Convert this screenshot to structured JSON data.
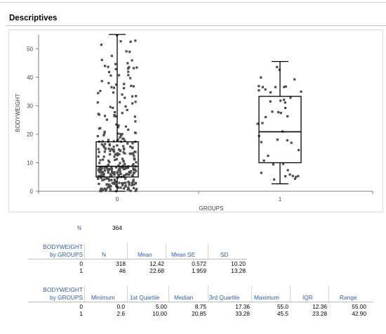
{
  "section": {
    "title": "Descriptives"
  },
  "chart_data": {
    "type": "box",
    "xlabel": "GROUPS",
    "ylabel": "BODYWEIGHT",
    "categories": [
      "0",
      "1"
    ],
    "ylim": [
      0,
      55
    ],
    "yticks": [
      0,
      10,
      20,
      30,
      40,
      50
    ],
    "boxes": [
      {
        "group": "0",
        "min": 0.0,
        "q1": 5.0,
        "median": 8.75,
        "q3": 17.36,
        "max": 55.0,
        "n": 318
      },
      {
        "group": "1",
        "min": 2.6,
        "q1": 10.0,
        "median": 20.85,
        "q3": 33.28,
        "max": 45.5,
        "n": 46
      }
    ],
    "points_shown": true,
    "grid": false,
    "legend": "none"
  },
  "n_table": {
    "label": "N",
    "value": "364"
  },
  "table1": {
    "group_header_line1": "BODYWEIGHT",
    "group_header_line2": "by GROUPS",
    "columns": [
      "N",
      "Mean",
      "Mean SE",
      "SD"
    ],
    "rows": [
      {
        "group": "0",
        "values": [
          "318",
          "12.42",
          "0.572",
          "10.20"
        ]
      },
      {
        "group": "1",
        "values": [
          "46",
          "22.68",
          "1.959",
          "13.28"
        ]
      }
    ]
  },
  "table2": {
    "group_header_line1": "BODYWEIGHT",
    "group_header_line2": "by GROUPS",
    "columns": [
      "Minimum",
      "1st Quartile",
      "Median",
      "3rd Quartile",
      "Maximum",
      "IQR",
      "Range"
    ],
    "rows": [
      {
        "group": "0",
        "values": [
          "0.0",
          "5.00",
          "8.75",
          "17.36",
          "55.0",
          "12.36",
          "55.00"
        ]
      },
      {
        "group": "1",
        "values": [
          "2.6",
          "10.00",
          "20.85",
          "33.28",
          "45.5",
          "23.28",
          "42.90"
        ]
      }
    ]
  }
}
